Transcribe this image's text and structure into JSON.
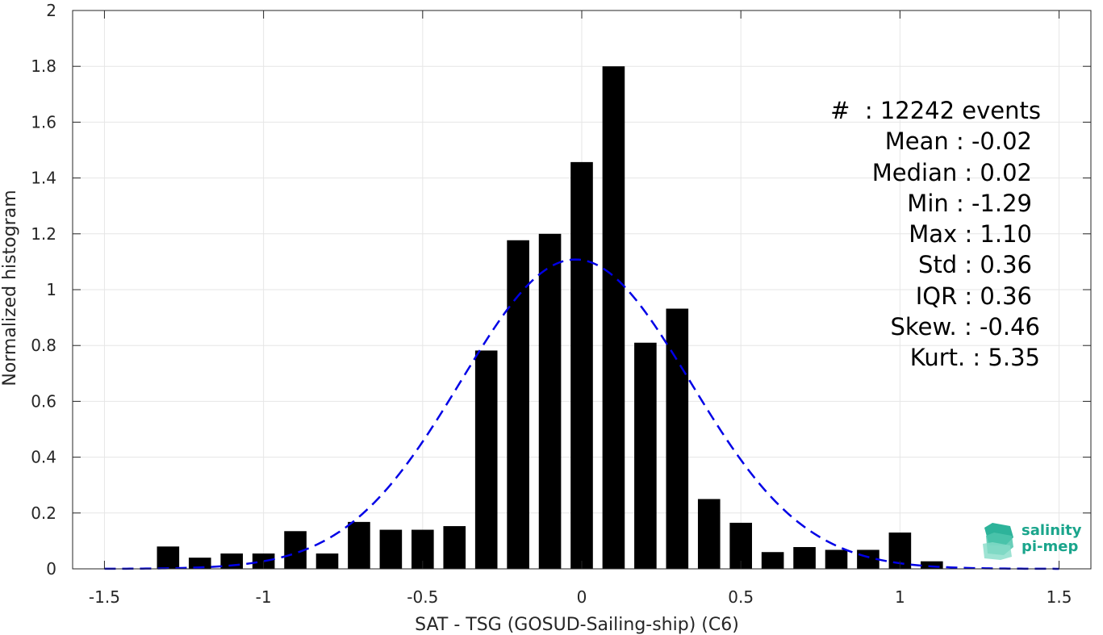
{
  "chart_data": {
    "type": "bar",
    "xlabel": "SAT - TSG (GOSUD-Sailing-ship) (C6)",
    "ylabel": "Normalized histogram",
    "xlim": [
      -1.6,
      1.6
    ],
    "ylim": [
      0,
      2
    ],
    "xticks": [
      -1.5,
      -1,
      -0.5,
      0,
      0.5,
      1,
      1.5
    ],
    "xtick_labels": [
      "-1.5",
      "-1",
      "-0.5",
      "0",
      "0.5",
      "1",
      "1.5"
    ],
    "yticks": [
      0,
      0.2,
      0.4,
      0.6,
      0.8,
      1,
      1.2,
      1.4,
      1.6,
      1.8,
      2
    ],
    "ytick_labels": [
      "0",
      "0.2",
      "0.4",
      "0.6",
      "0.8",
      "1",
      "1.2",
      "1.4",
      "1.6",
      "1.8",
      "2"
    ],
    "grid": true,
    "bar_width": 0.07,
    "bar_color": "#000000",
    "x": [
      -1.3,
      -1.2,
      -1.1,
      -1.0,
      -0.9,
      -0.8,
      -0.7,
      -0.6,
      -0.5,
      -0.4,
      -0.3,
      -0.2,
      -0.1,
      0.0,
      0.1,
      0.2,
      0.3,
      0.4,
      0.5,
      0.6,
      0.7,
      0.8,
      0.9,
      1.0,
      1.1
    ],
    "values": [
      0.08,
      0.04,
      0.055,
      0.055,
      0.135,
      0.055,
      0.168,
      0.14,
      0.14,
      0.153,
      0.782,
      1.177,
      1.2,
      1.457,
      1.8,
      0.81,
      0.932,
      0.25,
      0.165,
      0.06,
      0.078,
      0.068,
      0.068,
      0.13,
      0.027
    ],
    "fit_curve": {
      "type": "gaussian",
      "mean": -0.02,
      "std": 0.36,
      "color": "#0000e6",
      "style": "dashed",
      "x_range": [
        -1.5,
        1.5
      ]
    }
  },
  "stats": {
    "events": "#  : 12242 events",
    "mean": "Mean : -0.02",
    "median": "Median : 0.02",
    "min": "Min : -1.29",
    "max": "Max : 1.10",
    "std": "Std : 0.36",
    "iqr": "IQR : 0.36",
    "skew": "Skew. : -0.46",
    "kurt": "Kurt. : 5.35"
  },
  "logo": {
    "line1": "salinity",
    "line2": "pi-mep",
    "color": "#1aa58c"
  }
}
